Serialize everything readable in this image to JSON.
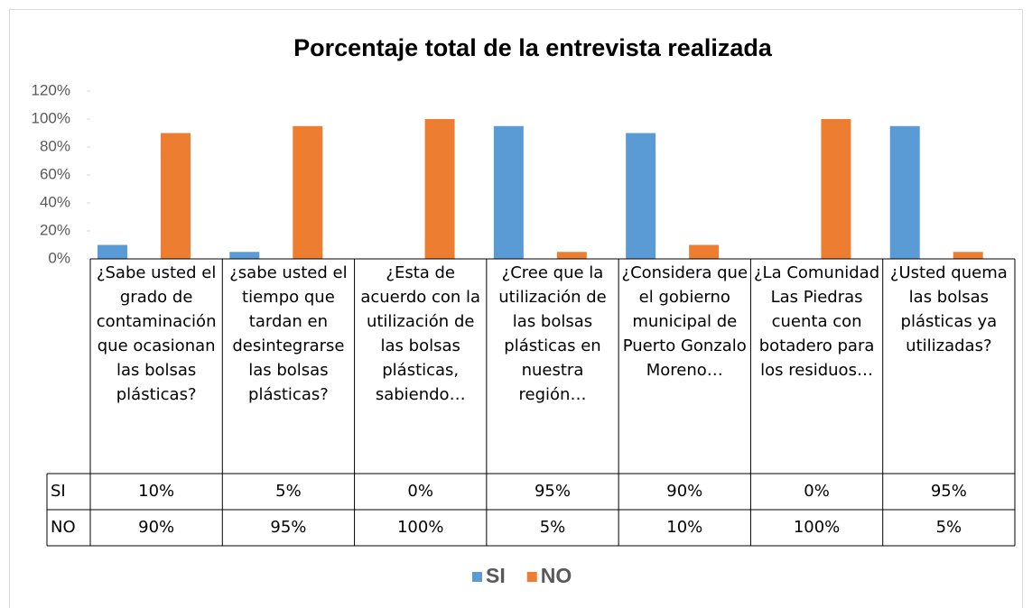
{
  "chart_data": {
    "type": "bar",
    "title": "Porcentaje total de la entrevista realizada",
    "categories": [
      "¿Sabe usted el grado de contaminación que ocasionan las bolsas plásticas?",
      "¿sabe usted el tiempo que tardan en desintegrarse las bolsas plásticas?",
      "¿Esta de acuerdo con la utilización de las bolsas plásticas, sabiendo…",
      "¿Cree que la utilización de las bolsas plásticas en nuestra región…",
      "¿Considera que el gobierno municipal de Puerto Gonzalo Moreno…",
      "¿La Comunidad Las Piedras cuenta con botadero para los residuos…",
      "¿Usted quema las bolsas plásticas ya utilizadas?"
    ],
    "series": [
      {
        "name": "SI",
        "color": "#5b9bd5",
        "values": [
          10,
          5,
          0,
          95,
          90,
          0,
          95
        ],
        "value_labels": [
          "10%",
          "5%",
          "0%",
          "95%",
          "90%",
          "0%",
          "95%"
        ]
      },
      {
        "name": "NO",
        "color": "#ed7d31",
        "values": [
          90,
          95,
          100,
          5,
          10,
          100,
          5
        ],
        "value_labels": [
          "90%",
          "95%",
          "100%",
          "5%",
          "10%",
          "100%",
          "5%"
        ]
      }
    ],
    "ylim": [
      0,
      120
    ],
    "yticks": [
      {
        "value": 0,
        "label": "0%"
      },
      {
        "value": 20,
        "label": "20%"
      },
      {
        "value": 40,
        "label": "40%"
      },
      {
        "value": 60,
        "label": "60%"
      },
      {
        "value": 80,
        "label": "80%"
      },
      {
        "value": 100,
        "label": "100%"
      },
      {
        "value": 120,
        "label": "120%"
      }
    ],
    "legend": "bottom"
  }
}
